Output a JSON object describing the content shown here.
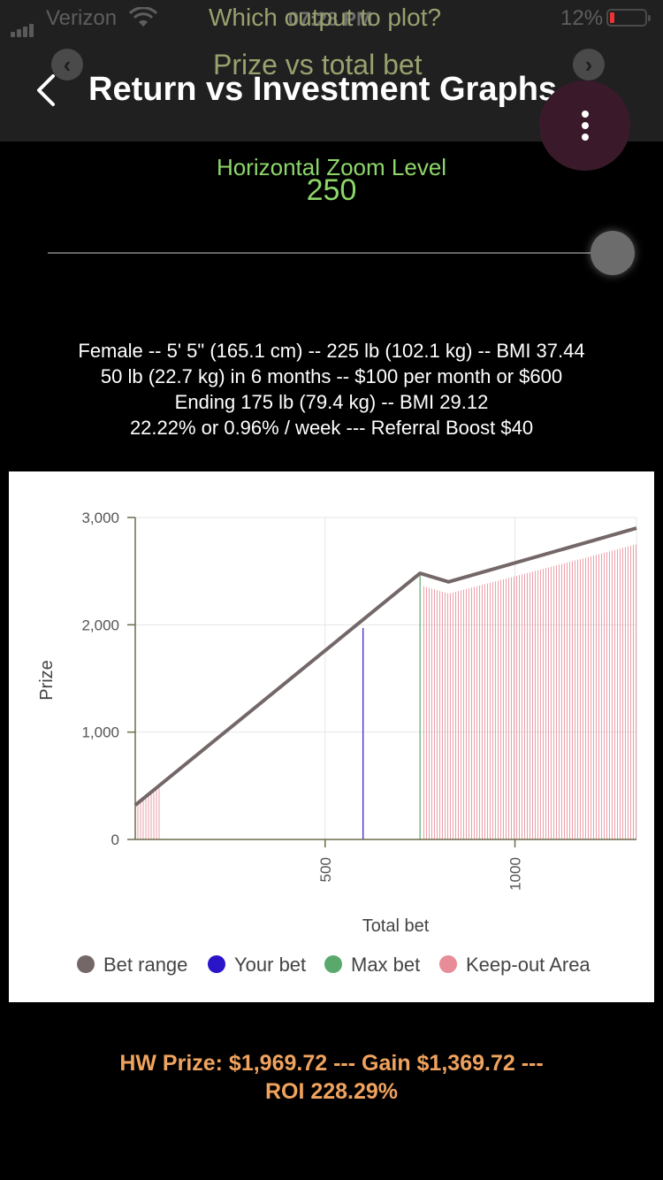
{
  "status_bar": {
    "carrier": "Verizon",
    "battery": "12%",
    "time": "07:28 PM"
  },
  "header": {
    "picker_label": "Which output to plot?",
    "picker_value": "Prize vs total bet",
    "title": "Return vs Investment Graphs",
    "prev_icon": "chevron-left",
    "next_icon": "chevron-right",
    "back_icon": "back-arrow",
    "menu_icon": "more-vertical"
  },
  "zoom": {
    "label": "Horizontal Zoom Level",
    "value": "250",
    "slider_fraction": 1.0
  },
  "info_lines": [
    "Female -- 5' 5\" (165.1 cm) -- 225 lb (102.1 kg) -- BMI 37.44",
    "50 lb (22.7 kg) in 6 months -- $100 per month or $600",
    "Ending 175 lb (79.4 kg) -- BMI 29.12",
    "22.22% or 0.96% / week --- Referral Boost $40"
  ],
  "chart_data": {
    "type": "line",
    "xlabel": "Total bet",
    "ylabel": "Prize",
    "xlim": [
      0,
      1320
    ],
    "ylim": [
      0,
      3000
    ],
    "x_ticks": [
      500,
      1000
    ],
    "y_ticks": [
      0,
      1000,
      2000,
      3000
    ],
    "y_tick_labels": [
      "0",
      "1,000",
      "2,000",
      "3,000"
    ],
    "grid": true,
    "legend_position": "bottom",
    "series": [
      {
        "name": "Bet range",
        "color": "#746768",
        "points": [
          [
            0,
            320
          ],
          [
            750,
            2480
          ],
          [
            825,
            2400
          ],
          [
            1320,
            2900
          ]
        ]
      }
    ],
    "your_bet": {
      "name": "Your bet",
      "x": 600,
      "y": 1969.72,
      "color": "#2a14c8"
    },
    "max_bet": {
      "name": "Max bet",
      "x": 750,
      "y": 2480,
      "color": "#5aa96c"
    },
    "keep_out": {
      "name": "Keep-out Area",
      "color": "#e88c98",
      "regions": [
        {
          "x_start": 0,
          "x_end": 65,
          "top": [
            [
              0,
              310
            ],
            [
              65,
              480
            ]
          ]
        },
        {
          "x_start": 760,
          "x_end": 1320,
          "top": [
            [
              760,
              2360
            ],
            [
              825,
              2290
            ],
            [
              1320,
              2750
            ]
          ]
        }
      ]
    },
    "legend": [
      "Bet range",
      "Your bet",
      "Max bet",
      "Keep-out Area"
    ],
    "legend_colors": [
      "#746768",
      "#2a14c8",
      "#5aa96c",
      "#e88c98"
    ]
  },
  "footer": {
    "line1": "HW Prize: $1,969.72 --- Gain $1,369.72 ---",
    "line2": "ROI 228.29%"
  }
}
